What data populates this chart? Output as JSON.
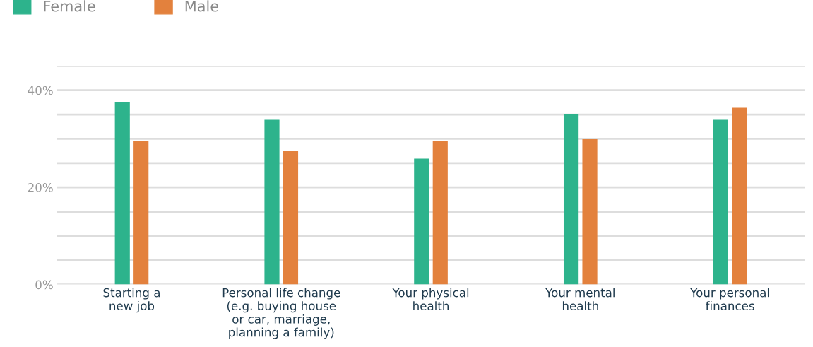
{
  "chart_data": {
    "type": "bar",
    "categories": [
      "Starting a\nnew job",
      "Personal life change\n(e.g. buying house\nor car, marriage,\nplanning a family)",
      "Your physical\nhealth",
      "Your mental\nhealth",
      "Your personal\nfinances"
    ],
    "series": [
      {
        "name": "Female",
        "color": "#2db38c",
        "values": [
          37.5,
          33.9,
          25.9,
          35.1,
          33.9
        ]
      },
      {
        "name": "Male",
        "color": "#e3813d",
        "values": [
          29.5,
          27.5,
          29.5,
          30.0,
          36.4
        ]
      }
    ],
    "ylim": [
      0,
      45
    ],
    "yticks": [
      {
        "value": 0,
        "label": "0%"
      },
      {
        "value": 5,
        "label": null
      },
      {
        "value": 10,
        "label": null
      },
      {
        "value": 15,
        "label": null
      },
      {
        "value": 20,
        "label": "20%"
      },
      {
        "value": 25,
        "label": null
      },
      {
        "value": 30,
        "label": null
      },
      {
        "value": 35,
        "label": null
      },
      {
        "value": 40,
        "label": "40%"
      },
      {
        "value": 45,
        "label": null
      }
    ],
    "grid": "y",
    "legend": "top left"
  }
}
